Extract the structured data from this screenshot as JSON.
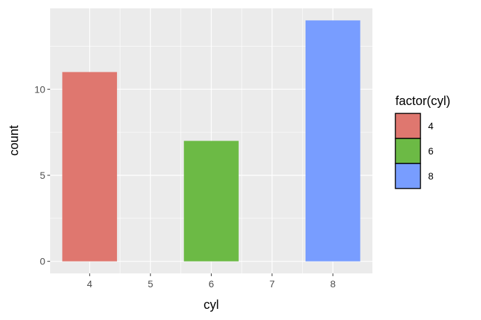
{
  "chart_data": {
    "type": "bar",
    "xlabel": "cyl",
    "ylabel": "count",
    "x_ticks": [
      "4",
      "5",
      "6",
      "7",
      "8"
    ],
    "y_ticks": [
      "0",
      "5",
      "10"
    ],
    "xlim": [
      3.35,
      8.65
    ],
    "ylim": [
      -0.7,
      14.7
    ],
    "bars": [
      {
        "x": 4,
        "count": 11,
        "fill_key": "4"
      },
      {
        "x": 6,
        "count": 7,
        "fill_key": "6"
      },
      {
        "x": 8,
        "count": 14,
        "fill_key": "8"
      }
    ],
    "legend": {
      "title": "factor(cyl)",
      "position": "right",
      "entries": [
        {
          "label": "4",
          "color": "#DF776F"
        },
        {
          "label": "6",
          "color": "#6CBA45"
        },
        {
          "label": "8",
          "color": "#789DFF"
        }
      ]
    },
    "panel_background": "#EBEBEB",
    "grid": true,
    "grid_color": "#FFFFFF"
  }
}
